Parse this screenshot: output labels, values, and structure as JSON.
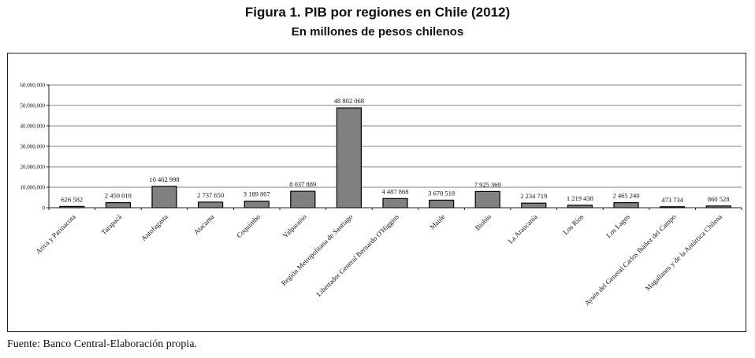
{
  "title": "Figura 1. PIB por regiones en Chile (2012)",
  "subtitle": "En millones de pesos chilenos",
  "source": "Fuente: Banco Central-Elaboración propia.",
  "chart_data": {
    "type": "bar",
    "title": "Figura 1. PIB por regiones en Chile (2012)",
    "subtitle": "En millones de pesos chilenos",
    "xlabel": "",
    "ylabel": "",
    "ylim": [
      0,
      60000000
    ],
    "y_ticks": [
      0,
      10000000,
      20000000,
      30000000,
      40000000,
      50000000,
      60000000
    ],
    "y_tick_labels": [
      "0",
      "10,000,000",
      "20,000,000",
      "30,000,000",
      "40,000,000",
      "50,000,000",
      "60,000,000"
    ],
    "grid": true,
    "bar_color": "#808080",
    "categories": [
      "Arica y Parinacota",
      "Tarapacá",
      "Antofagasta",
      "Atacama",
      "Coquimbo",
      "Valparaíso",
      "Región Metropolitana de Santiago",
      "Libertador General Bernardo O'Higgins",
      "Maule",
      "Biobío",
      "La Araucanía",
      "Los Ríos",
      "Los Lagos",
      "Aysén del General Carlos Ibáñez del Campo",
      "Magallanes y de la Antártica Chilena"
    ],
    "values": [
      626582,
      2459018,
      10462998,
      2737650,
      3189807,
      8037889,
      48802068,
      4487868,
      3678518,
      7925369,
      2234719,
      1219438,
      2465240,
      473734,
      860528
    ],
    "value_labels": [
      "626 582",
      "2 459 018",
      "10 462 998",
      "2 737 650",
      "3 189 807",
      "8 037 889",
      "48 802 068",
      "4 487 868",
      "3 678 518",
      "7 925 369",
      "2 234 719",
      "1 219 438",
      "2 465 240",
      "473 734",
      "860 528"
    ]
  }
}
